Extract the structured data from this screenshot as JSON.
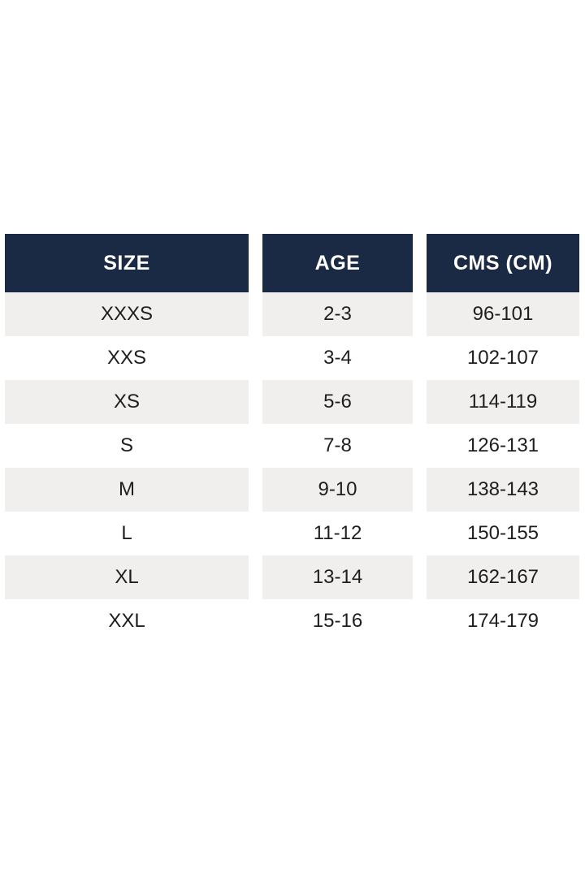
{
  "table": {
    "columns": [
      {
        "key": "size",
        "label": "SIZE"
      },
      {
        "key": "age",
        "label": "AGE"
      },
      {
        "key": "cms",
        "label": "CMS (CM)"
      }
    ],
    "rows": [
      {
        "size": "XXXS",
        "age": "2-3",
        "cms": "96-101"
      },
      {
        "size": "XXS",
        "age": "3-4",
        "cms": "102-107"
      },
      {
        "size": "XS",
        "age": "5-6",
        "cms": "114-119"
      },
      {
        "size": "S",
        "age": "7-8",
        "cms": "126-131"
      },
      {
        "size": "M",
        "age": "9-10",
        "cms": "138-143"
      },
      {
        "size": "L",
        "age": "11-12",
        "cms": "150-155"
      },
      {
        "size": "XL",
        "age": "13-14",
        "cms": "162-167"
      },
      {
        "size": "XXL",
        "age": "15-16",
        "cms": "174-179"
      }
    ],
    "colors": {
      "header_bg": "#1b2a44",
      "header_text": "#ffffff",
      "row_alt_bg": "#f0efed",
      "row_text": "#1e1e1e",
      "page_bg": "#ffffff"
    }
  }
}
